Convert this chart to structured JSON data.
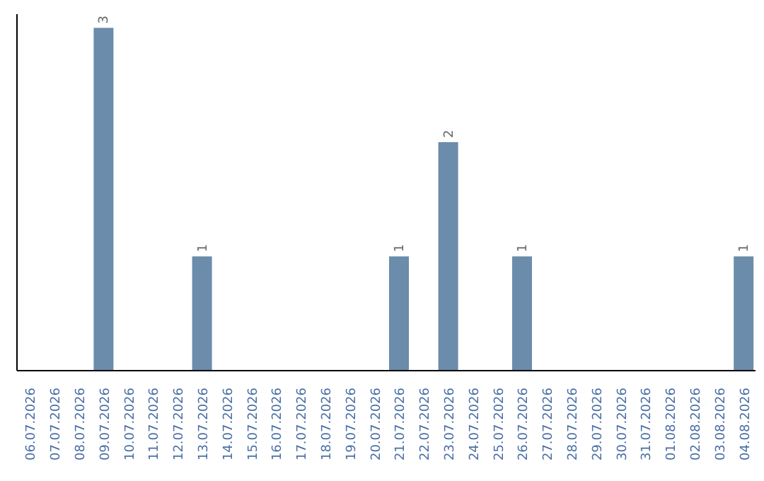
{
  "chart_data": {
    "type": "bar",
    "categories": [
      "06.07.2026",
      "07.07.2026",
      "08.07.2026",
      "09.07.2026",
      "10.07.2026",
      "11.07.2026",
      "12.07.2026",
      "13.07.2026",
      "14.07.2026",
      "15.07.2026",
      "16.07.2026",
      "17.07.2026",
      "18.07.2026",
      "19.07.2026",
      "20.07.2026",
      "21.07.2026",
      "22.07.2026",
      "23.07.2026",
      "24.07.2026",
      "25.07.2026",
      "26.07.2026",
      "27.07.2026",
      "28.07.2026",
      "29.07.2026",
      "30.07.2026",
      "31.07.2026",
      "01.08.2026",
      "02.08.2026",
      "03.08.2026",
      "04.08.2026"
    ],
    "values": [
      0,
      0,
      0,
      3,
      0,
      0,
      0,
      1,
      0,
      0,
      0,
      0,
      0,
      0,
      0,
      1,
      0,
      2,
      0,
      0,
      1,
      0,
      0,
      0,
      0,
      0,
      0,
      0,
      0,
      1
    ],
    "value_labels": [
      null,
      null,
      null,
      "3",
      null,
      null,
      null,
      "1",
      null,
      null,
      null,
      null,
      null,
      null,
      null,
      "1",
      null,
      "2",
      null,
      null,
      "1",
      null,
      null,
      null,
      null,
      null,
      null,
      null,
      null,
      "1"
    ],
    "color": "#6b8cab",
    "grid": false,
    "legend": false
  }
}
